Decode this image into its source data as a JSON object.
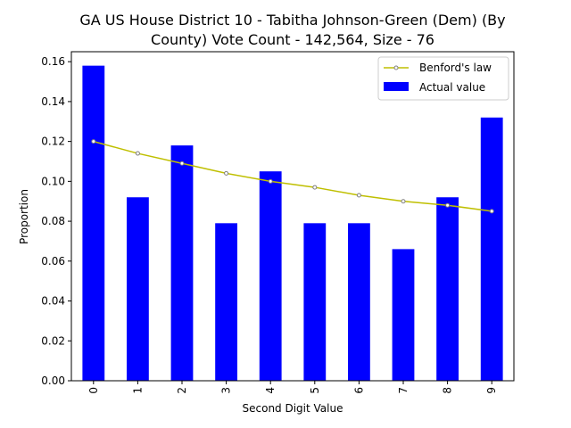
{
  "chart_data": {
    "type": "bar",
    "title": "GA US House District 10 - Tabitha Johnson-Green (Dem) (By County) Vote Count - 142,564, Size - 76",
    "title_lines": [
      "GA US House District 10 - Tabitha Johnson-Green (Dem) (By",
      "County) Vote Count - 142,564, Size - 76"
    ],
    "xlabel": "Second Digit Value",
    "ylabel": "Proportion",
    "categories": [
      "0",
      "1",
      "2",
      "3",
      "4",
      "5",
      "6",
      "7",
      "8",
      "9"
    ],
    "ylim": [
      0,
      0.165
    ],
    "yticks": [
      0.0,
      0.02,
      0.04,
      0.06,
      0.08,
      0.1,
      0.12,
      0.14,
      0.16
    ],
    "ytick_labels": [
      "0.00",
      "0.02",
      "0.04",
      "0.06",
      "0.08",
      "0.10",
      "0.12",
      "0.14",
      "0.16"
    ],
    "grid": false,
    "legend_position": "top-right",
    "series": [
      {
        "name": "Benford's law",
        "kind": "line",
        "color": "#bfbf00",
        "marker_edge": "#808080",
        "values": [
          0.12,
          0.114,
          0.109,
          0.104,
          0.1,
          0.097,
          0.093,
          0.09,
          0.088,
          0.085
        ]
      },
      {
        "name": "Actual value",
        "kind": "bar",
        "color": "#0000ff",
        "values": [
          0.158,
          0.092,
          0.118,
          0.079,
          0.105,
          0.079,
          0.079,
          0.066,
          0.092,
          0.132
        ]
      }
    ]
  }
}
